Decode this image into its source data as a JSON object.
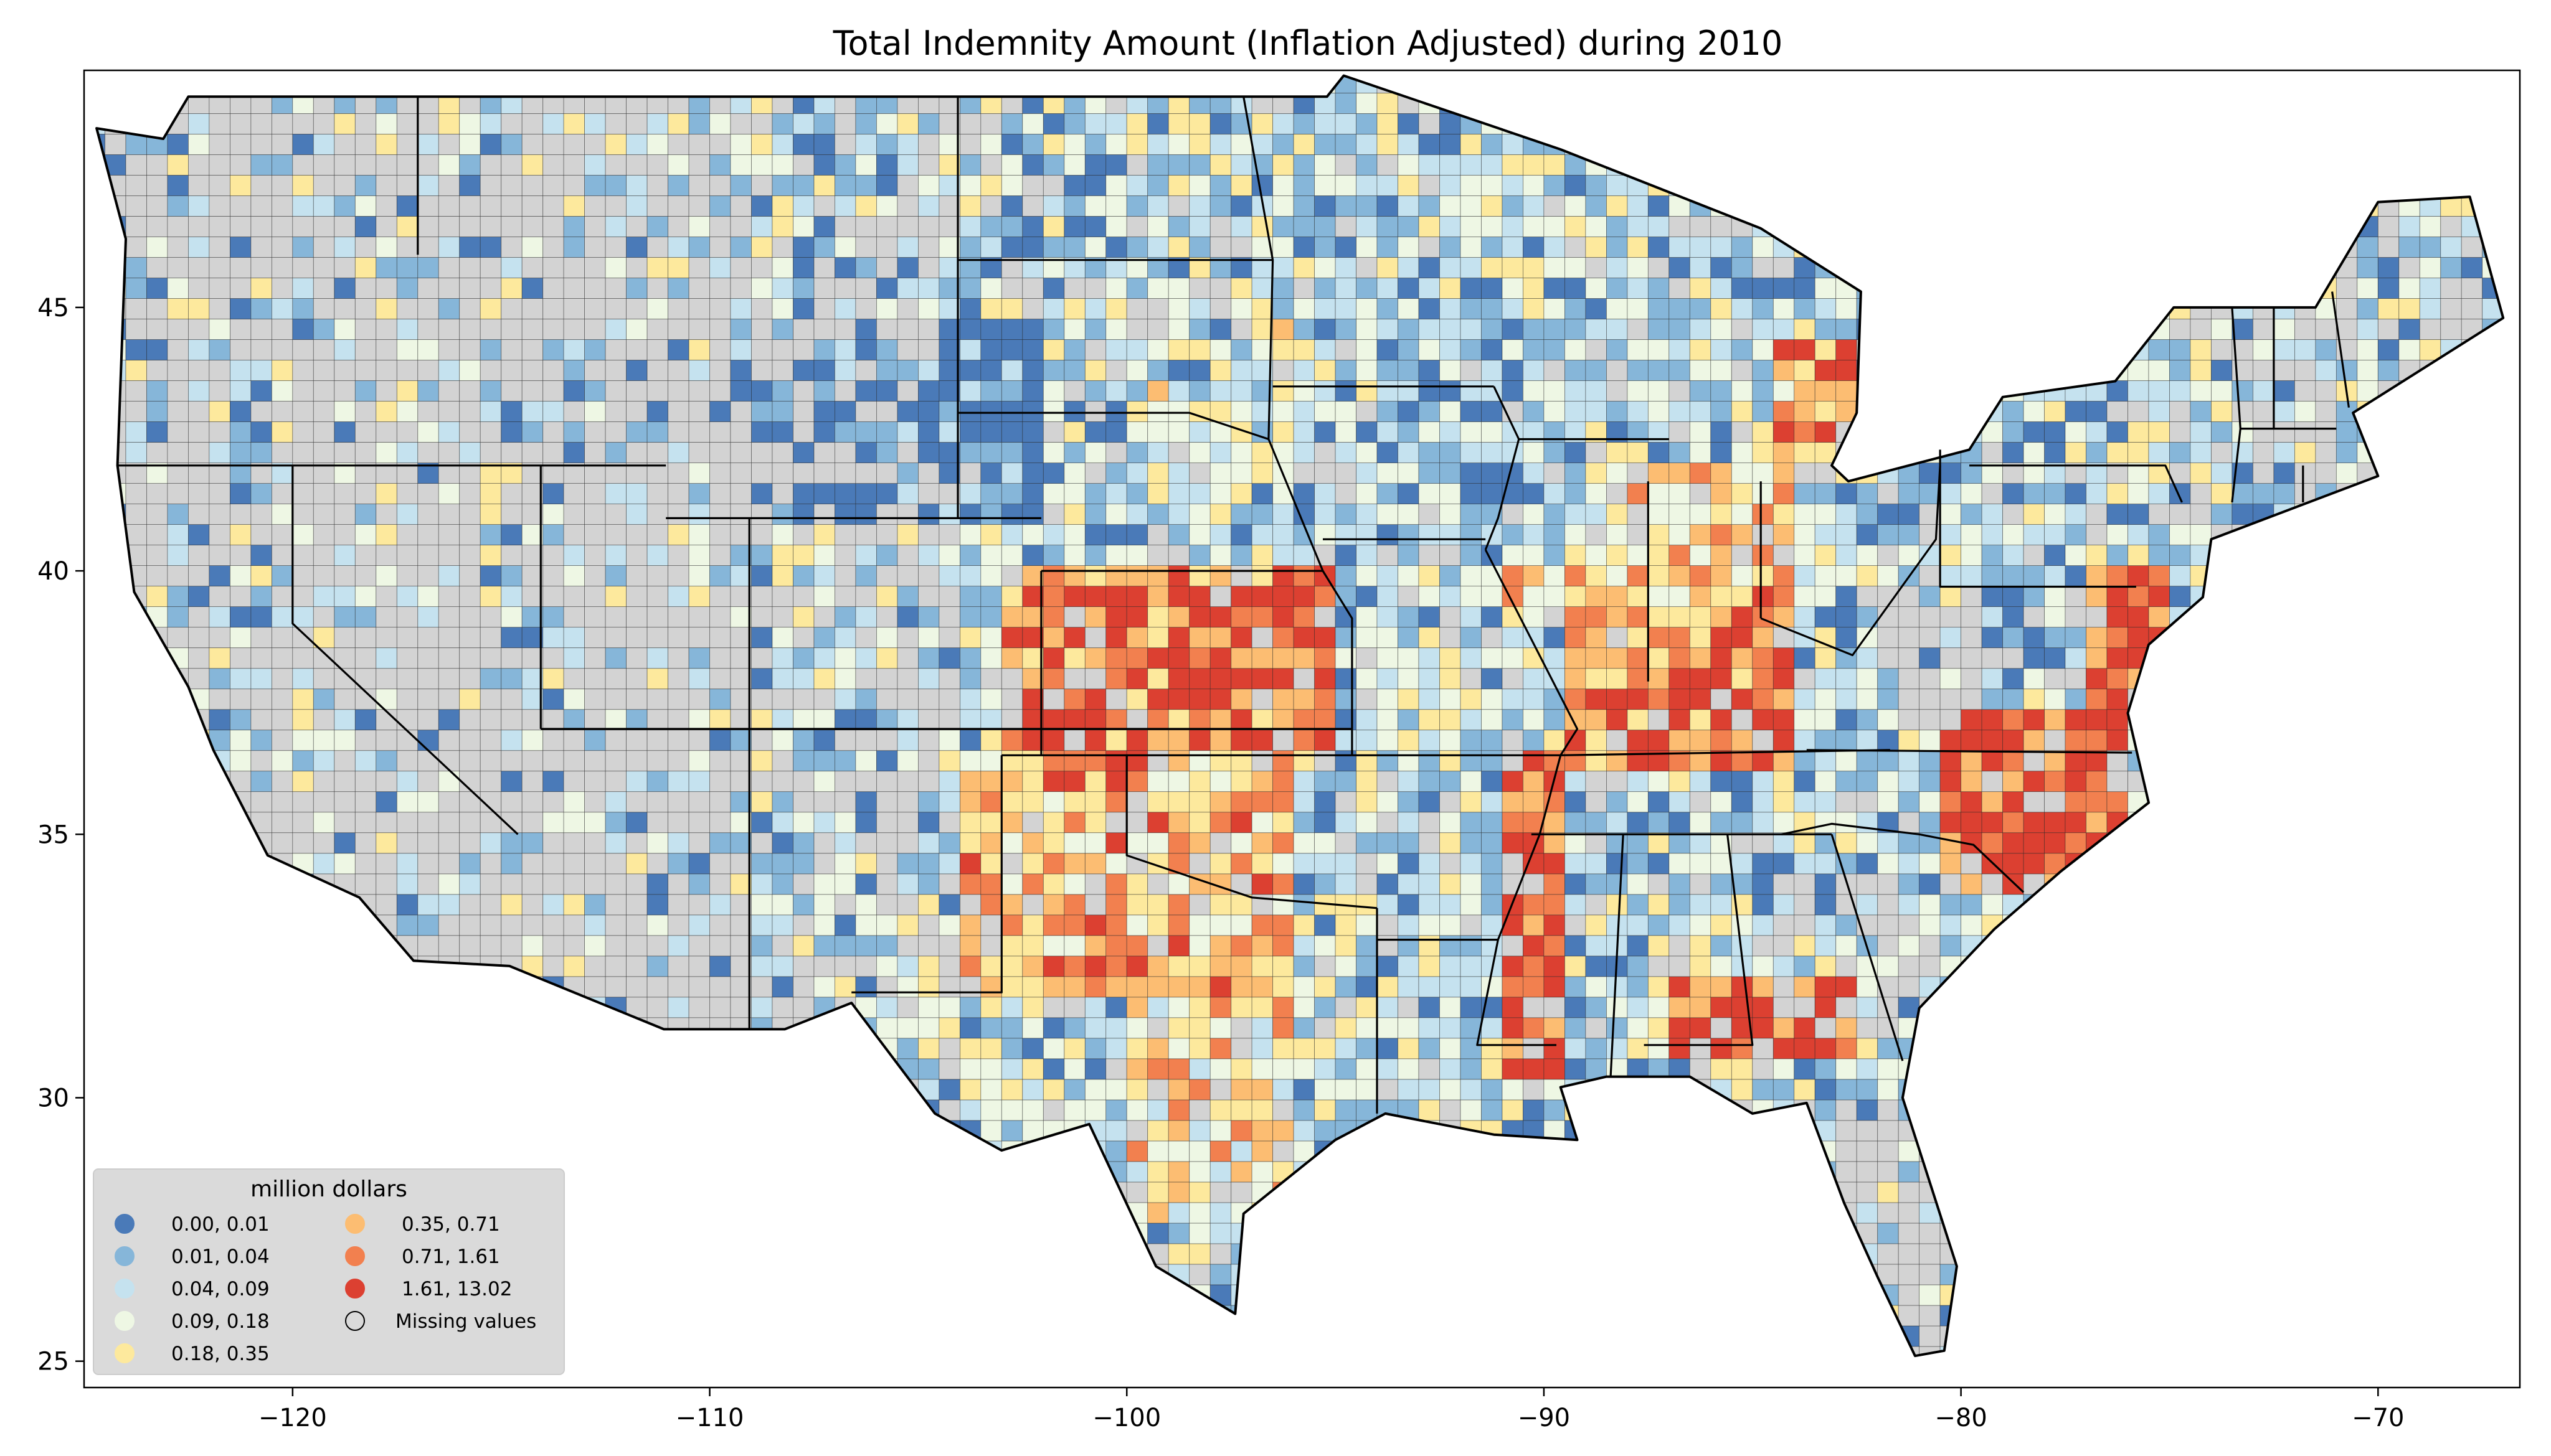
{
  "title": "Total Indemnity Amount  (Inflation Adjusted) during 2010",
  "axes": {
    "x_ticks": [
      {
        "value": -120,
        "label": "−120"
      },
      {
        "value": -110,
        "label": "−110"
      },
      {
        "value": -100,
        "label": "−100"
      },
      {
        "value": -90,
        "label": "−90"
      },
      {
        "value": -80,
        "label": "−80"
      },
      {
        "value": -70,
        "label": "−70"
      }
    ],
    "y_ticks": [
      {
        "value": 25,
        "label": "25"
      },
      {
        "value": 30,
        "label": "30"
      },
      {
        "value": 35,
        "label": "35"
      },
      {
        "value": 40,
        "label": "40"
      },
      {
        "value": 45,
        "label": "45"
      }
    ],
    "xlim": [
      -125.0,
      -66.6
    ],
    "ylim": [
      24.5,
      49.5
    ]
  },
  "legend": {
    "title": "million dollars",
    "placement": "lower-left",
    "items": [
      {
        "label": "0.00,  0.01",
        "color": "#4a7ab8"
      },
      {
        "label": "0.01,  0.04",
        "color": "#86b6d9"
      },
      {
        "label": "0.04,  0.09",
        "color": "#c5e2ef"
      },
      {
        "label": "0.09,  0.18",
        "color": "#eef7e4"
      },
      {
        "label": "0.18,  0.35",
        "color": "#fde99d"
      },
      {
        "label": "0.35,  0.71",
        "color": "#fcbd72"
      },
      {
        "label": "0.71,  1.61",
        "color": "#f2804f"
      },
      {
        "label": "1.61, 13.02",
        "color": "#dc4031"
      },
      {
        "label": "Missing values",
        "color": "#d3d3d3"
      }
    ]
  },
  "chart_data": {
    "type": "choropleth",
    "title": "Total Indemnity Amount  (Inflation Adjusted) during 2010",
    "unit": "million dollars",
    "xlim": [
      -125.0,
      -66.6
    ],
    "ylim": [
      24.5,
      49.5
    ],
    "classes": [
      {
        "range": [
          0.0,
          0.01
        ],
        "color": "#4a7ab8"
      },
      {
        "range": [
          0.01,
          0.04
        ],
        "color": "#86b6d9"
      },
      {
        "range": [
          0.04,
          0.09
        ],
        "color": "#c5e2ef"
      },
      {
        "range": [
          0.09,
          0.18
        ],
        "color": "#eef7e4"
      },
      {
        "range": [
          0.18,
          0.35
        ],
        "color": "#fde99d"
      },
      {
        "range": [
          0.35,
          0.71
        ],
        "color": "#fcbd72"
      },
      {
        "range": [
          0.71,
          1.61
        ],
        "color": "#f2804f"
      },
      {
        "range": [
          1.61,
          13.02
        ],
        "color": "#dc4031"
      }
    ],
    "missing_color": "#d3d3d3",
    "region_outline_lonlat": [
      [
        -124.7,
        48.4
      ],
      [
        -123.1,
        48.2
      ],
      [
        -122.5,
        49.0
      ],
      [
        -95.2,
        49.0
      ],
      [
        -94.8,
        49.4
      ],
      [
        -89.6,
        48.0
      ],
      [
        -84.8,
        46.5
      ],
      [
        -82.4,
        45.3
      ],
      [
        -82.5,
        43.0
      ],
      [
        -83.1,
        42.0
      ],
      [
        -82.7,
        41.7
      ],
      [
        -79.8,
        42.3
      ],
      [
        -79.0,
        43.3
      ],
      [
        -76.3,
        43.6
      ],
      [
        -74.9,
        45.0
      ],
      [
        -71.5,
        45.0
      ],
      [
        -70.0,
        47.0
      ],
      [
        -67.8,
        47.1
      ],
      [
        -67.0,
        44.8
      ],
      [
        -70.6,
        43.0
      ],
      [
        -70.0,
        41.8
      ],
      [
        -74.0,
        40.6
      ],
      [
        -74.2,
        39.5
      ],
      [
        -75.5,
        38.6
      ],
      [
        -76.0,
        37.3
      ],
      [
        -75.5,
        35.6
      ],
      [
        -77.6,
        34.3
      ],
      [
        -79.2,
        33.2
      ],
      [
        -81.0,
        31.7
      ],
      [
        -81.4,
        30.0
      ],
      [
        -80.1,
        26.8
      ],
      [
        -80.4,
        25.2
      ],
      [
        -81.1,
        25.1
      ],
      [
        -82.0,
        26.6
      ],
      [
        -82.8,
        28.0
      ],
      [
        -83.7,
        29.9
      ],
      [
        -85.0,
        29.7
      ],
      [
        -86.5,
        30.4
      ],
      [
        -88.5,
        30.4
      ],
      [
        -89.6,
        30.2
      ],
      [
        -89.2,
        29.2
      ],
      [
        -91.2,
        29.3
      ],
      [
        -93.8,
        29.7
      ],
      [
        -95.0,
        29.2
      ],
      [
        -97.2,
        27.8
      ],
      [
        -97.4,
        25.9
      ],
      [
        -99.3,
        26.8
      ],
      [
        -100.9,
        29.5
      ],
      [
        -103.0,
        29.0
      ],
      [
        -104.6,
        29.7
      ],
      [
        -106.6,
        31.8
      ],
      [
        -108.2,
        31.3
      ],
      [
        -111.1,
        31.3
      ],
      [
        -114.8,
        32.5
      ],
      [
        -117.1,
        32.6
      ],
      [
        -118.4,
        33.8
      ],
      [
        -120.6,
        34.6
      ],
      [
        -121.9,
        36.6
      ],
      [
        -122.5,
        37.8
      ],
      [
        -123.8,
        39.6
      ],
      [
        -124.2,
        42.0
      ],
      [
        -124.0,
        46.3
      ],
      [
        -124.7,
        48.4
      ]
    ],
    "state_boundaries_lonlat": [
      [
        [
          -120.0,
          42.0
        ],
        [
          -120.0,
          39.0
        ],
        [
          -114.6,
          35.0
        ]
      ],
      [
        [
          -124.2,
          42.0
        ],
        [
          -111.05,
          42.0
        ]
      ],
      [
        [
          -117.0,
          46.0
        ],
        [
          -117.0,
          49.0
        ]
      ],
      [
        [
          -114.05,
          42.0
        ],
        [
          -114.05,
          37.0
        ]
      ],
      [
        [
          -111.05,
          41.0
        ],
        [
          -102.05,
          41.0
        ]
      ],
      [
        [
          -109.05,
          41.0
        ],
        [
          -109.05,
          31.3
        ]
      ],
      [
        [
          -114.05,
          37.0
        ],
        [
          -94.6,
          37.0
        ]
      ],
      [
        [
          -104.05,
          49.0
        ],
        [
          -104.05,
          41.0
        ]
      ],
      [
        [
          -102.05,
          40.0
        ],
        [
          -102.05,
          36.5
        ]
      ],
      [
        [
          -103.0,
          36.5
        ],
        [
          -103.0,
          32.0
        ],
        [
          -106.6,
          32.0
        ]
      ],
      [
        [
          -97.2,
          49.0
        ],
        [
          -96.5,
          45.9
        ],
        [
          -96.6,
          42.5
        ],
        [
          -95.3,
          40.0
        ],
        [
          -94.6,
          39.1
        ],
        [
          -94.6,
          36.5
        ]
      ],
      [
        [
          -104.05,
          45.9
        ],
        [
          -96.5,
          45.9
        ]
      ],
      [
        [
          -104.05,
          43.0
        ],
        [
          -98.5,
          43.0
        ],
        [
          -96.6,
          42.5
        ]
      ],
      [
        [
          -102.05,
          40.0
        ],
        [
          -95.3,
          40.0
        ]
      ],
      [
        [
          -103.0,
          36.5
        ],
        [
          -94.6,
          36.5
        ]
      ],
      [
        [
          -100.0,
          36.5
        ],
        [
          -100.0,
          34.6
        ],
        [
          -97.0,
          33.8
        ],
        [
          -94.0,
          33.6
        ]
      ],
      [
        [
          -94.0,
          33.6
        ],
        [
          -94.0,
          29.7
        ]
      ],
      [
        [
          -96.5,
          43.5
        ],
        [
          -91.2,
          43.5
        ]
      ],
      [
        [
          -91.2,
          43.5
        ],
        [
          -90.6,
          42.5
        ],
        [
          -91.1,
          41.0
        ],
        [
          -91.4,
          40.4
        ]
      ],
      [
        [
          -95.3,
          40.6
        ],
        [
          -91.4,
          40.6
        ]
      ],
      [
        [
          -94.6,
          36.5
        ],
        [
          -89.6,
          36.5
        ]
      ],
      [
        [
          -94.0,
          33.0
        ],
        [
          -91.1,
          33.0
        ]
      ],
      [
        [
          -90.6,
          42.5
        ],
        [
          -87.0,
          42.5
        ]
      ],
      [
        [
          -91.4,
          40.4
        ],
        [
          -89.2,
          37.0
        ],
        [
          -89.6,
          36.5
        ],
        [
          -90.1,
          35.0
        ],
        [
          -91.1,
          33.0
        ],
        [
          -91.6,
          31.0
        ],
        [
          -89.7,
          31.0
        ]
      ],
      [
        [
          -87.5,
          41.7
        ],
        [
          -87.5,
          37.9
        ]
      ],
      [
        [
          -84.8,
          41.7
        ],
        [
          -84.8,
          39.1
        ]
      ],
      [
        [
          -89.6,
          36.5
        ],
        [
          -81.7,
          36.6
        ]
      ],
      [
        [
          -90.3,
          35.0
        ],
        [
          -83.1,
          35.0
        ]
      ],
      [
        [
          -88.1,
          35.0
        ],
        [
          -88.4,
          30.4
        ]
      ],
      [
        [
          -85.6,
          35.0
        ],
        [
          -85.0,
          31.0
        ],
        [
          -87.6,
          31.0
        ]
      ],
      [
        [
          -84.8,
          39.1
        ],
        [
          -82.6,
          38.4
        ],
        [
          -80.6,
          40.6
        ],
        [
          -80.5,
          42.0
        ]
      ],
      [
        [
          -80.5,
          42.3
        ],
        [
          -80.5,
          39.7
        ],
        [
          -75.8,
          39.7
        ]
      ],
      [
        [
          -79.8,
          42.0
        ],
        [
          -75.1,
          42.0
        ],
        [
          -74.7,
          41.3
        ]
      ],
      [
        [
          -83.7,
          36.6
        ],
        [
          -75.9,
          36.55
        ]
      ],
      [
        [
          -84.3,
          35.0
        ],
        [
          -83.1,
          35.2
        ],
        [
          -81.0,
          35.0
        ],
        [
          -79.7,
          34.8
        ],
        [
          -78.5,
          33.9
        ]
      ],
      [
        [
          -83.1,
          35.0
        ],
        [
          -81.4,
          30.7
        ]
      ],
      [
        [
          -73.5,
          45.0
        ],
        [
          -73.3,
          42.7
        ],
        [
          -73.5,
          41.3
        ]
      ],
      [
        [
          -73.3,
          42.7
        ],
        [
          -71.0,
          42.7
        ]
      ],
      [
        [
          -71.8,
          42.0
        ],
        [
          -71.8,
          41.3
        ]
      ],
      [
        [
          -72.5,
          45.0
        ],
        [
          -72.5,
          42.7
        ]
      ],
      [
        [
          -71.1,
          45.3
        ],
        [
          -70.7,
          43.1
        ]
      ]
    ]
  }
}
